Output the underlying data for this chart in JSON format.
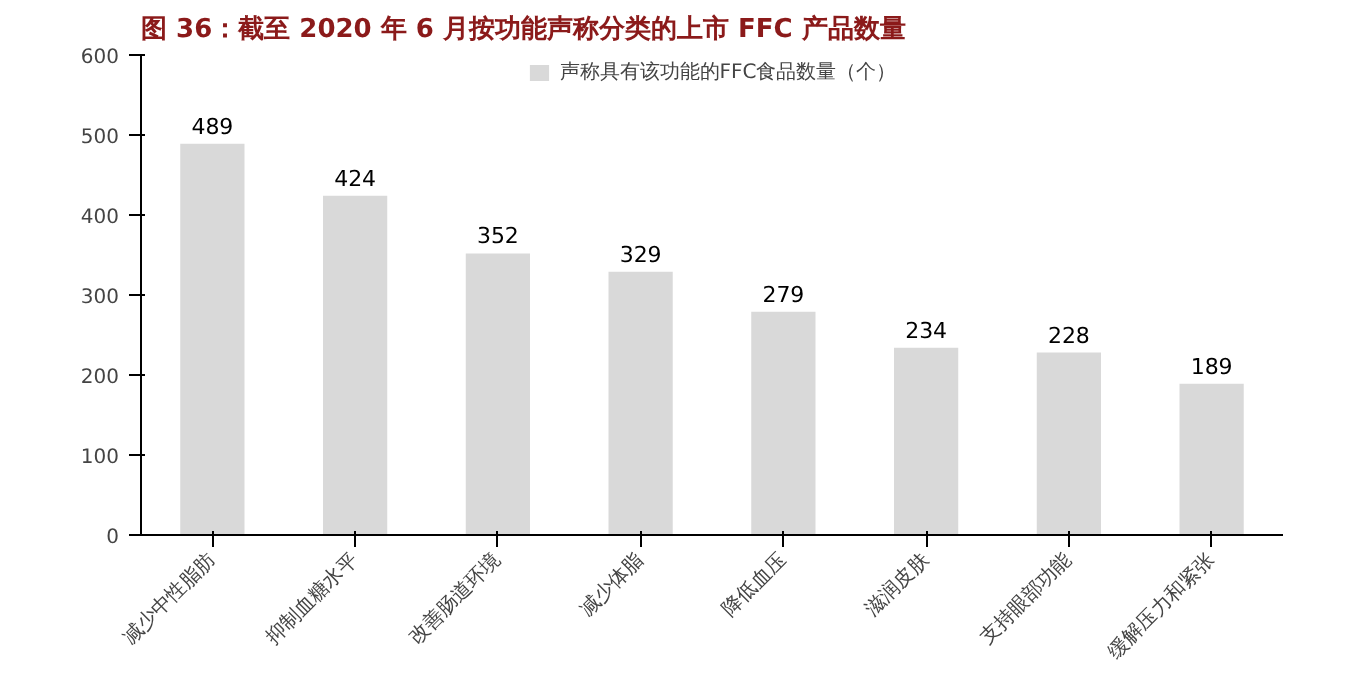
{
  "chart_data": {
    "type": "bar",
    "title": "图 36：截至 2020 年 6 月按功能声称分类的上市 FFC 产品数量",
    "categories": [
      "减少中性脂肪",
      "抑制血糖水平",
      "改善肠道环境",
      "减少体脂",
      "降低血压",
      "滋润皮肤",
      "支持眼部功能",
      "缓解压力和紧张"
    ],
    "series": [
      {
        "name": "声称具有该功能的FFC食品数量（个）",
        "color": "#d9d9d9",
        "values": [
          489,
          424,
          352,
          329,
          279,
          234,
          228,
          189
        ]
      }
    ],
    "ylim": [
      0,
      600
    ],
    "yticks": [
      0,
      100,
      200,
      300,
      400,
      500,
      600
    ],
    "data_labels": true,
    "legend": "top",
    "grid": false
  }
}
